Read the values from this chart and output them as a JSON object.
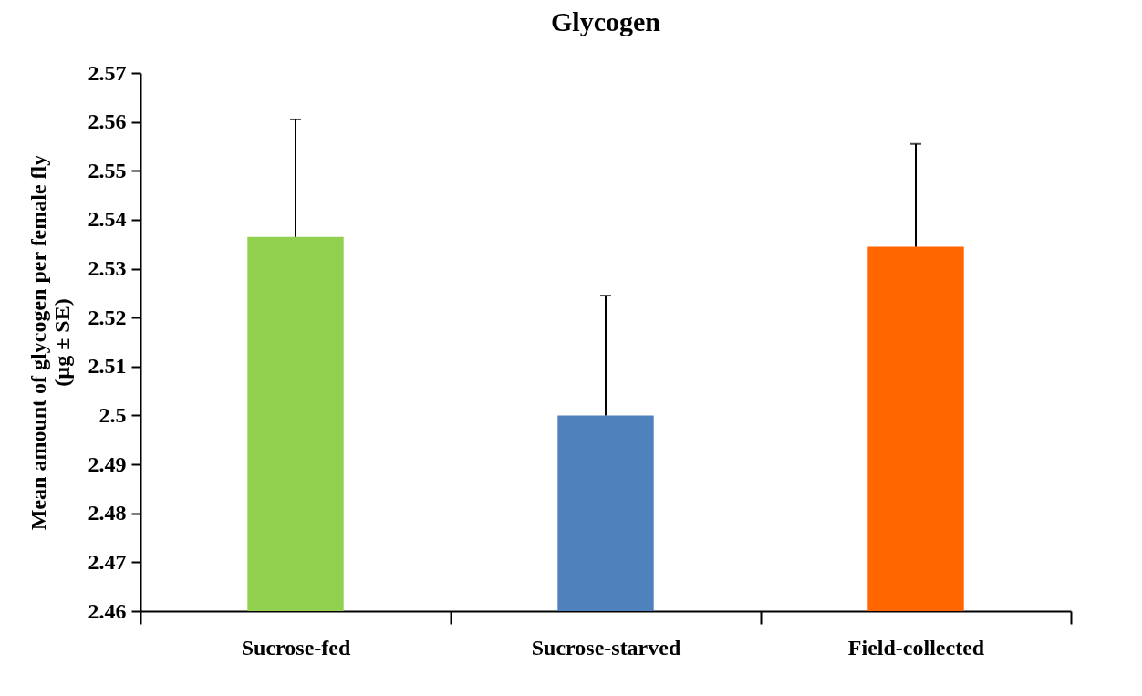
{
  "chart_data": {
    "type": "bar",
    "title": "Glycogen",
    "ylabel": "Mean amount of glycogen per female fly\n(µg ± SE)",
    "categories": [
      "Sucrose-fed",
      "Sucrose-starved",
      "Field-collected"
    ],
    "values": [
      2.5365,
      2.5,
      2.5345
    ],
    "colors": [
      "#92d050",
      "#4f81bd",
      "#ff6600"
    ],
    "errors": [
      [
        2.5365,
        2.5605
      ],
      [
        2.5,
        2.5245
      ],
      [
        2.5345,
        2.5555
      ]
    ],
    "ylim": [
      2.46,
      2.57
    ],
    "yticks": [
      2.46,
      2.47,
      2.48,
      2.49,
      2.5,
      2.51,
      2.52,
      2.53,
      2.54,
      2.55,
      2.56,
      2.57
    ],
    "grid": false
  }
}
